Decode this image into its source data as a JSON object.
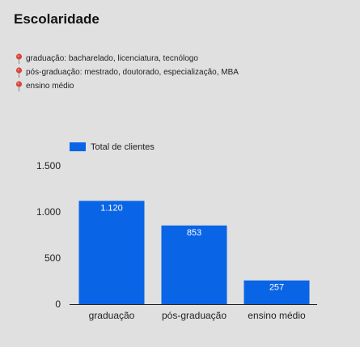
{
  "title": "Escolaridade",
  "notes": [
    {
      "icon": "map-pin-icon",
      "text": "graduação: bacharelado, licenciatura, tecnólogo"
    },
    {
      "icon": "map-pin-icon",
      "text": "pós-graduação: mestrado, doutorado, especialização, MBA"
    },
    {
      "icon": "map-pin-icon",
      "text": "ensino médio"
    }
  ],
  "colors": {
    "bar": "#0a64e6",
    "background": "#e0e0e0",
    "pin": "#d9453b"
  },
  "chart_data": {
    "type": "bar",
    "categories": [
      "graduação",
      "pós-graduação",
      "ensino médio"
    ],
    "series": [
      {
        "name": "Total de clientes",
        "values": [
          1120,
          853,
          257
        ]
      }
    ],
    "value_labels": [
      "1.120",
      "853",
      "257"
    ],
    "yticks": [
      0,
      500,
      1000,
      1500
    ],
    "ytick_labels": [
      "0",
      "500",
      "1.000",
      "1.500"
    ],
    "ylim": [
      0,
      1500
    ],
    "legend": "top-left",
    "grid": false
  }
}
